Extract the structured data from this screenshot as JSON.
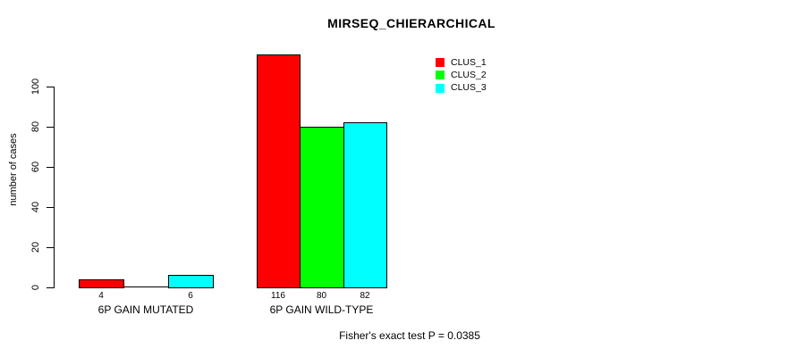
{
  "chart_data": {
    "type": "bar",
    "title": "MIRSEQ_CHIERARCHICAL",
    "xlabel": "",
    "ylabel": "number of cases",
    "categories": [
      "6P GAIN MUTATED",
      "6P GAIN WILD-TYPE"
    ],
    "series": [
      {
        "name": "CLUS_1",
        "color": "#ff0000",
        "values": [
          4,
          116
        ]
      },
      {
        "name": "CLUS_2",
        "color": "#00ff00",
        "values": [
          0,
          80
        ]
      },
      {
        "name": "CLUS_3",
        "color": "#00ffff",
        "values": [
          6,
          82
        ]
      }
    ],
    "bar_value_labels": [
      [
        "4",
        "",
        "6"
      ],
      [
        "116",
        "80",
        "82"
      ]
    ],
    "yticks": [
      0,
      20,
      40,
      60,
      80,
      100
    ],
    "ylim": [
      0,
      116
    ],
    "grid": false,
    "bar_border_color": "#000000",
    "legend_position": "top-right",
    "legend_entries": [
      "CLUS_1",
      "CLUS_2",
      "CLUS_3"
    ],
    "annotation": "Fisher's exact test P = 0.0385"
  }
}
